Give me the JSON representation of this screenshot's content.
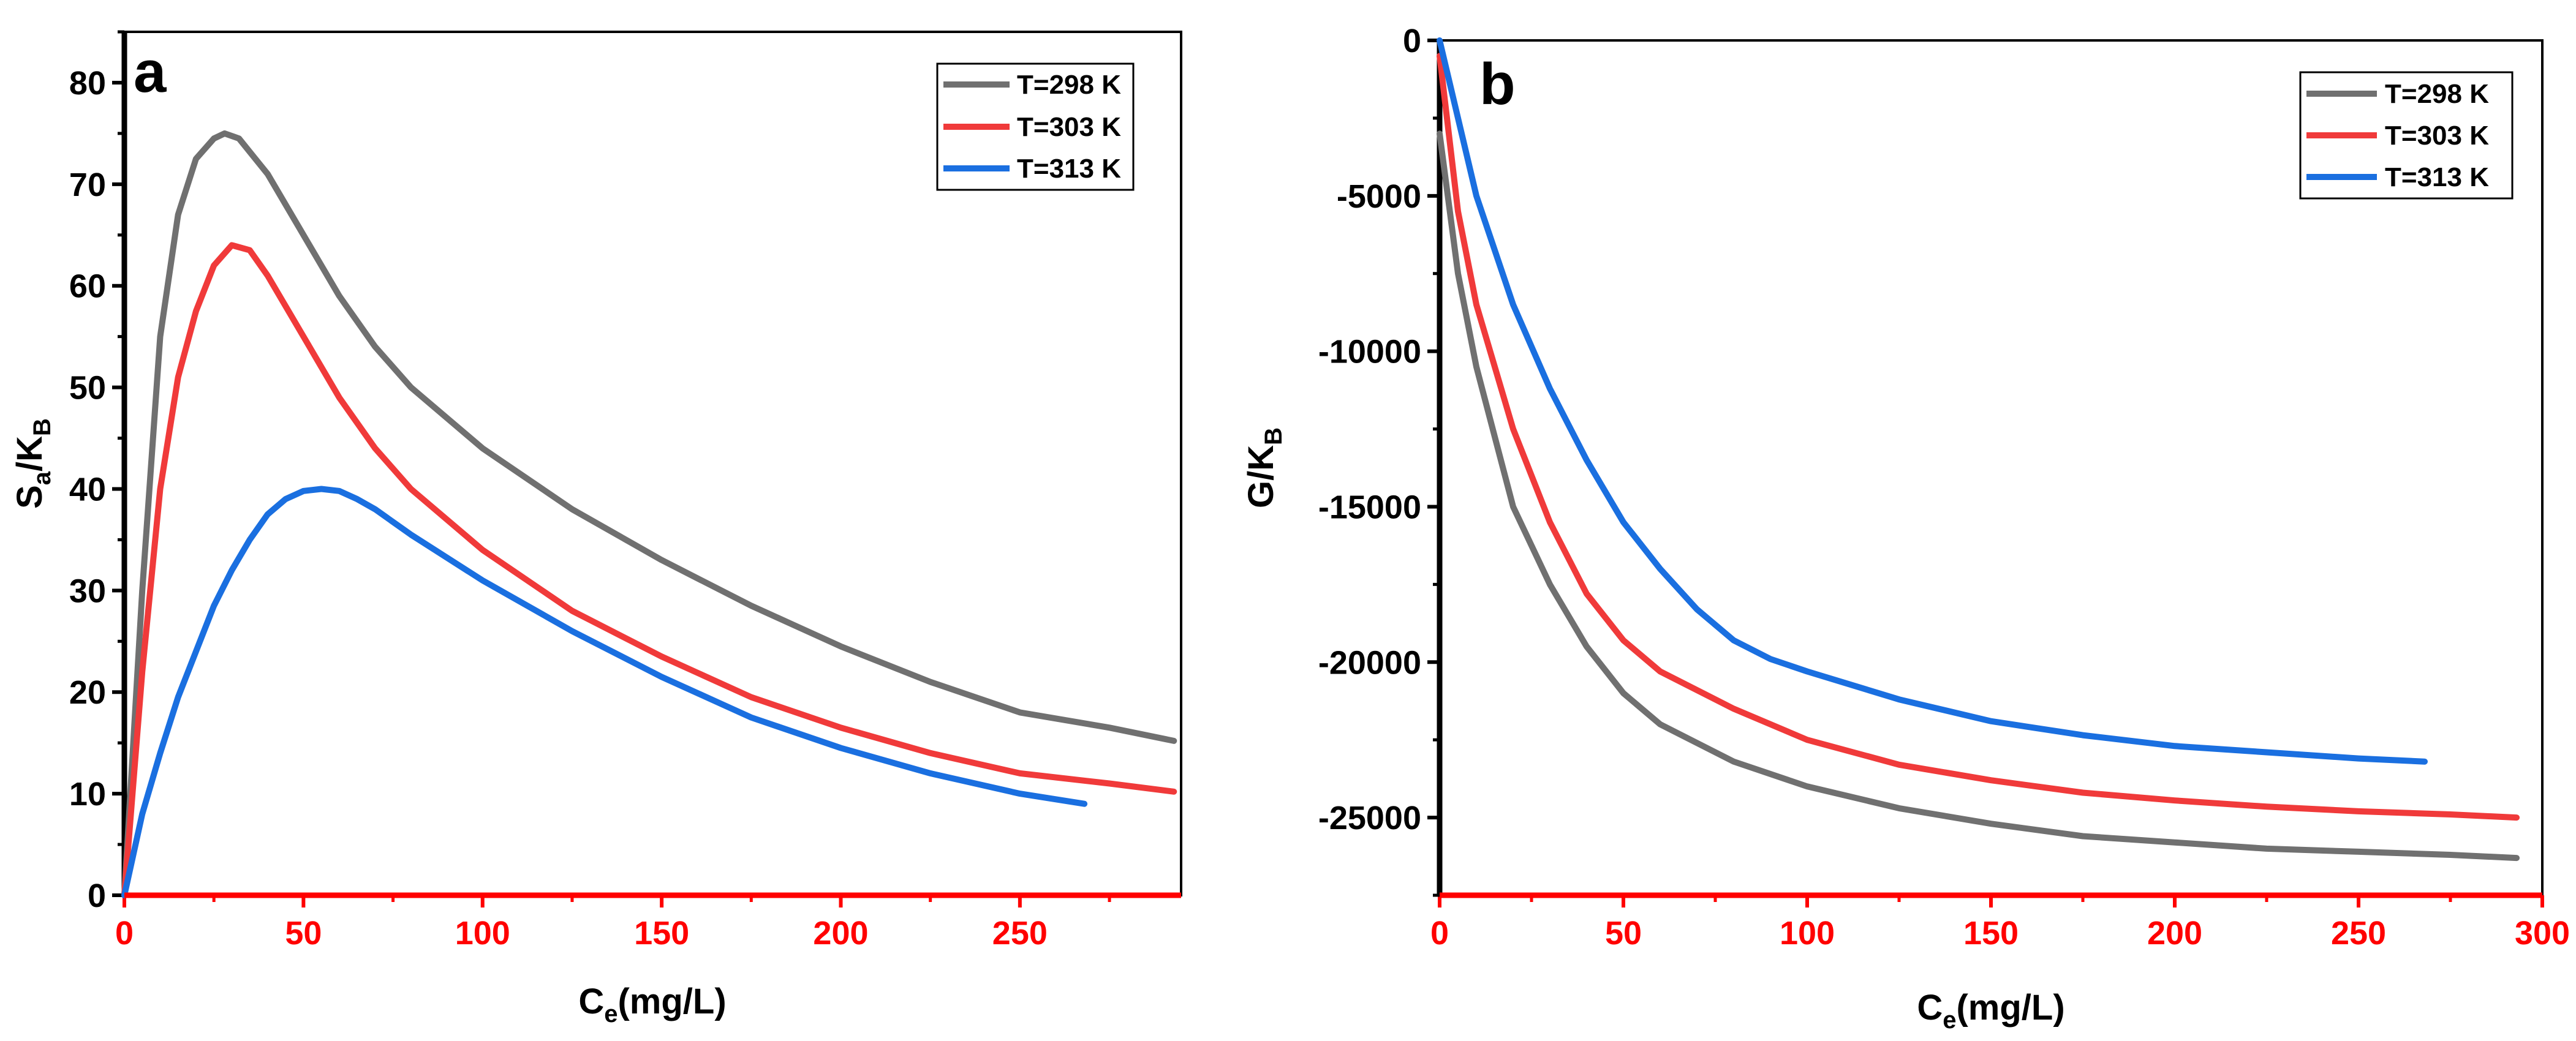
{
  "chart_data": [
    {
      "type": "line",
      "panel_label": "a",
      "xlabel": {
        "main": "C",
        "sub": "e",
        "rest": "(mg/L)"
      },
      "ylabel": {
        "main": "S",
        "sub1": "a",
        "mid": "/K",
        "sub2": "B"
      },
      "xlim": [
        0,
        295
      ],
      "ylim": [
        0,
        85
      ],
      "xticks": [
        0,
        50,
        100,
        150,
        200,
        250
      ],
      "yticks": [
        0,
        10,
        20,
        30,
        40,
        50,
        60,
        70,
        80
      ],
      "legend_position": "top-right",
      "series": [
        {
          "name": "T=298 K",
          "color": "#707070",
          "points": [
            [
              0,
              0
            ],
            [
              5,
              30
            ],
            [
              10,
              55
            ],
            [
              15,
              67
            ],
            [
              20,
              72.5
            ],
            [
              25,
              74.5
            ],
            [
              28,
              75
            ],
            [
              32,
              74.5
            ],
            [
              40,
              71
            ],
            [
              50,
              65
            ],
            [
              60,
              59
            ],
            [
              70,
              54
            ],
            [
              80,
              50
            ],
            [
              100,
              44
            ],
            [
              125,
              38
            ],
            [
              150,
              33
            ],
            [
              175,
              28.5
            ],
            [
              200,
              24.5
            ],
            [
              225,
              21
            ],
            [
              250,
              18
            ],
            [
              275,
              16.5
            ],
            [
              293,
              15.2
            ]
          ]
        },
        {
          "name": "T=303 K",
          "color": "#f03a3a",
          "points": [
            [
              0,
              0
            ],
            [
              5,
              22
            ],
            [
              10,
              40
            ],
            [
              15,
              51
            ],
            [
              20,
              57.5
            ],
            [
              25,
              62
            ],
            [
              30,
              64
            ],
            [
              35,
              63.5
            ],
            [
              40,
              61
            ],
            [
              50,
              55
            ],
            [
              60,
              49
            ],
            [
              70,
              44
            ],
            [
              80,
              40
            ],
            [
              100,
              34
            ],
            [
              125,
              28
            ],
            [
              150,
              23.5
            ],
            [
              175,
              19.5
            ],
            [
              200,
              16.5
            ],
            [
              225,
              14
            ],
            [
              250,
              12
            ],
            [
              275,
              11
            ],
            [
              293,
              10.2
            ]
          ]
        },
        {
          "name": "T=313 K",
          "color": "#1a6fe0",
          "points": [
            [
              0,
              0
            ],
            [
              5,
              8
            ],
            [
              10,
              14
            ],
            [
              15,
              19.5
            ],
            [
              20,
              24
            ],
            [
              25,
              28.5
            ],
            [
              30,
              32
            ],
            [
              35,
              35
            ],
            [
              40,
              37.5
            ],
            [
              45,
              39
            ],
            [
              50,
              39.8
            ],
            [
              55,
              40
            ],
            [
              60,
              39.8
            ],
            [
              65,
              39
            ],
            [
              70,
              38
            ],
            [
              80,
              35.5
            ],
            [
              100,
              31
            ],
            [
              125,
              26
            ],
            [
              150,
              21.5
            ],
            [
              175,
              17.5
            ],
            [
              200,
              14.5
            ],
            [
              225,
              12
            ],
            [
              250,
              10
            ],
            [
              268,
              9
            ]
          ]
        }
      ]
    },
    {
      "type": "line",
      "panel_label": "b",
      "xlabel": {
        "main": "C",
        "sub": "e",
        "rest": "(mg/L)"
      },
      "ylabel": {
        "main": "G/K",
        "sub": "B"
      },
      "xlim": [
        0,
        300
      ],
      "ylim": [
        -27500,
        0
      ],
      "xticks": [
        0,
        50,
        100,
        150,
        200,
        250,
        300
      ],
      "yticks": [
        0,
        -5000,
        -10000,
        -15000,
        -20000,
        -25000
      ],
      "legend_position": "top-right",
      "series": [
        {
          "name": "T=298 K",
          "color": "#707070",
          "points": [
            [
              0,
              -3000
            ],
            [
              5,
              -7500
            ],
            [
              10,
              -10500
            ],
            [
              20,
              -15000
            ],
            [
              30,
              -17500
            ],
            [
              40,
              -19500
            ],
            [
              50,
              -21000
            ],
            [
              60,
              -22000
            ],
            [
              80,
              -23200
            ],
            [
              100,
              -24000
            ],
            [
              125,
              -24700
            ],
            [
              150,
              -25200
            ],
            [
              175,
              -25600
            ],
            [
              200,
              -25800
            ],
            [
              225,
              -26000
            ],
            [
              250,
              -26100
            ],
            [
              275,
              -26200
            ],
            [
              293,
              -26300
            ]
          ]
        },
        {
          "name": "T=303 K",
          "color": "#f03a3a",
          "points": [
            [
              0,
              -500
            ],
            [
              5,
              -5500
            ],
            [
              10,
              -8500
            ],
            [
              20,
              -12500
            ],
            [
              30,
              -15500
            ],
            [
              40,
              -17800
            ],
            [
              50,
              -19300
            ],
            [
              60,
              -20300
            ],
            [
              80,
              -21500
            ],
            [
              100,
              -22500
            ],
            [
              125,
              -23300
            ],
            [
              150,
              -23800
            ],
            [
              175,
              -24200
            ],
            [
              200,
              -24450
            ],
            [
              225,
              -24650
            ],
            [
              250,
              -24800
            ],
            [
              275,
              -24900
            ],
            [
              293,
              -25000
            ]
          ]
        },
        {
          "name": "T=313 K",
          "color": "#1a6fe0",
          "points": [
            [
              0,
              0
            ],
            [
              5,
              -2500
            ],
            [
              10,
              -5000
            ],
            [
              20,
              -8500
            ],
            [
              30,
              -11200
            ],
            [
              40,
              -13500
            ],
            [
              50,
              -15500
            ],
            [
              60,
              -17000
            ],
            [
              70,
              -18300
            ],
            [
              80,
              -19300
            ],
            [
              90,
              -19900
            ],
            [
              100,
              -20300
            ],
            [
              125,
              -21200
            ],
            [
              150,
              -21900
            ],
            [
              175,
              -22350
            ],
            [
              200,
              -22700
            ],
            [
              225,
              -22900
            ],
            [
              250,
              -23100
            ],
            [
              268,
              -23200
            ]
          ]
        }
      ]
    }
  ]
}
